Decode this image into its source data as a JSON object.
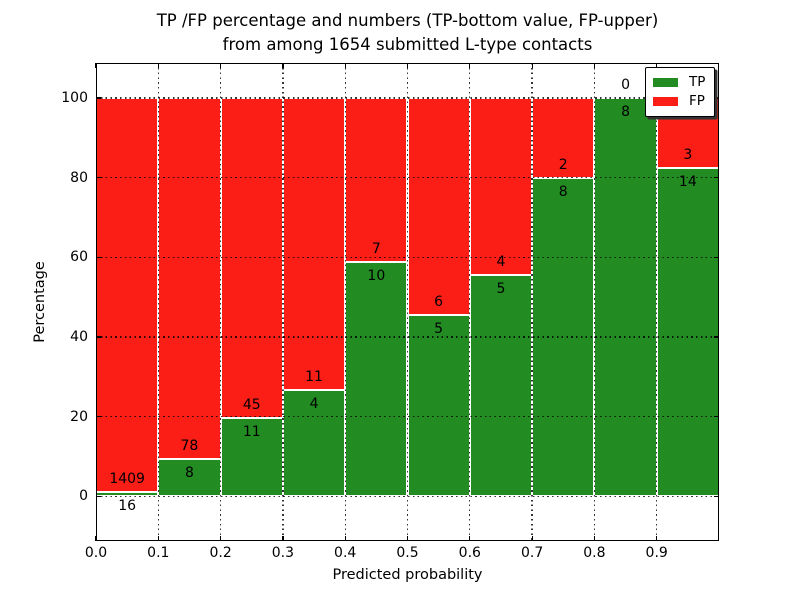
{
  "chart_data": {
    "type": "bar",
    "stacked": true,
    "normalized_to_percent": true,
    "title_line1": "TP /FP percentage and numbers (TP-bottom value, FP-upper)",
    "title_line2": "from among 1654 submitted L-type contacts",
    "xlabel": "Predicted probability",
    "ylabel": "Percentage",
    "total_contacts": 1654,
    "categories": [
      "0.0",
      "0.1",
      "0.2",
      "0.3",
      "0.4",
      "0.5",
      "0.6",
      "0.7",
      "0.8",
      "0.9"
    ],
    "series": [
      {
        "name": "TP",
        "color": "#228B22",
        "values": [
          16,
          8,
          11,
          4,
          10,
          5,
          5,
          8,
          8,
          14
        ]
      },
      {
        "name": "FP",
        "color": "#FB1E16",
        "values": [
          1409,
          78,
          45,
          11,
          7,
          6,
          4,
          2,
          0,
          3
        ]
      }
    ],
    "tp_percent_of_bin": [
      1.12,
      9.3,
      19.64,
      26.67,
      58.82,
      45.45,
      55.56,
      80.0,
      100.0,
      82.35
    ],
    "xticks": [
      "0.0",
      "0.1",
      "0.2",
      "0.3",
      "0.4",
      "0.5",
      "0.6",
      "0.7",
      "0.8",
      "0.9"
    ],
    "yticks": [
      0,
      20,
      40,
      60,
      80,
      100
    ],
    "xlim": [
      0.0,
      1.0
    ],
    "ylim": [
      -11.2,
      108.8
    ],
    "grid": {
      "visible": true,
      "style": "dotted",
      "color": "#000000"
    },
    "legend": {
      "position": "upper right",
      "entries": [
        {
          "label": "TP",
          "color": "#228B22"
        },
        {
          "label": "FP",
          "color": "#FB1E16"
        }
      ]
    }
  }
}
